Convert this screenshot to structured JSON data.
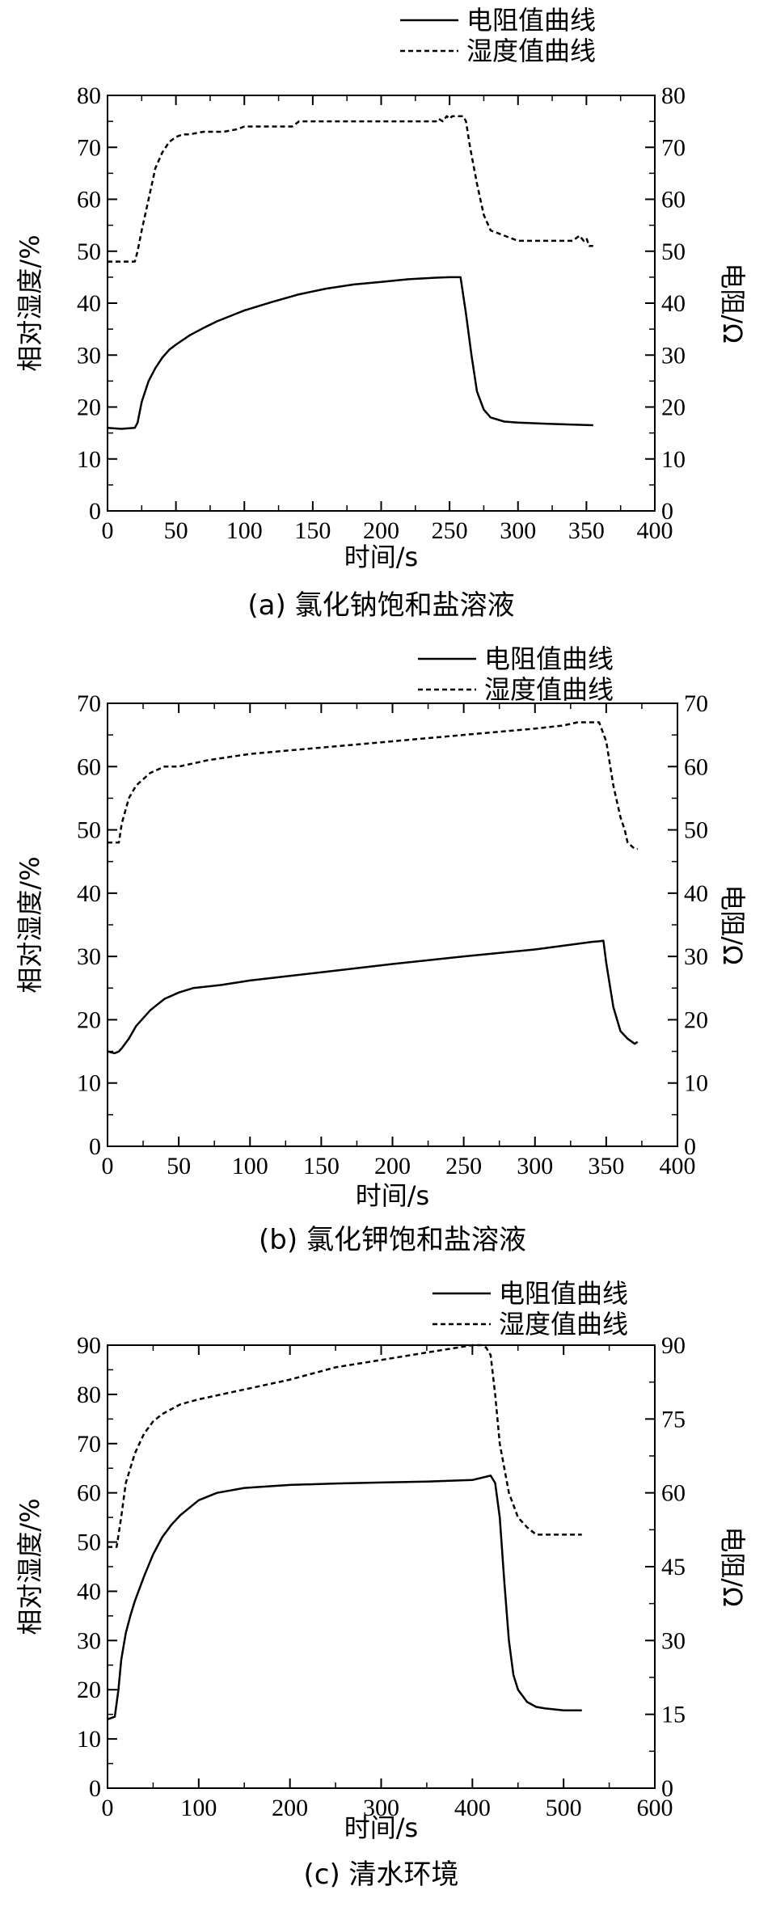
{
  "chart_data": [
    {
      "type": "line",
      "caption": "(a) 氯化钠饱和盐溶液",
      "xlabel": "时间/s",
      "ylabel": "相对湿度/%",
      "y2label": "电阻/Ω",
      "xlim": [
        0,
        400
      ],
      "xticks": [
        0,
        50,
        100,
        150,
        200,
        250,
        300,
        350,
        400
      ],
      "ylim": [
        0,
        80
      ],
      "yticks": [
        0,
        10,
        20,
        30,
        40,
        50,
        60,
        70,
        80
      ],
      "y2lim": [
        0,
        80
      ],
      "y2ticks": [
        0,
        10,
        20,
        30,
        40,
        50,
        60,
        70,
        80
      ],
      "legend": "top-right",
      "grid": false,
      "series": [
        {
          "name": "电阻值曲线",
          "style": "solid",
          "axis": "right",
          "x": [
            0,
            10,
            20,
            22,
            25,
            30,
            35,
            40,
            45,
            50,
            60,
            70,
            80,
            100,
            120,
            140,
            160,
            180,
            200,
            220,
            240,
            250,
            255,
            258,
            262,
            266,
            270,
            275,
            280,
            290,
            300,
            320,
            340,
            355
          ],
          "y": [
            16,
            15.8,
            16,
            17,
            21,
            25,
            27.5,
            29.5,
            31,
            32,
            33.8,
            35.2,
            36.5,
            38.6,
            40.2,
            41.7,
            42.8,
            43.6,
            44.1,
            44.6,
            44.9,
            45,
            45,
            45,
            38,
            30,
            23,
            19.5,
            18,
            17.2,
            17,
            16.8,
            16.6,
            16.5
          ]
        },
        {
          "name": "湿度值曲线",
          "style": "dashed",
          "axis": "left",
          "x": [
            0,
            20,
            22,
            25,
            30,
            35,
            40,
            45,
            50,
            55,
            60,
            70,
            85,
            95,
            100,
            120,
            135,
            140,
            160,
            200,
            240,
            242,
            245,
            248,
            250,
            252,
            255,
            260,
            262,
            265,
            270,
            275,
            280,
            290,
            300,
            320,
            340,
            345,
            348,
            350,
            352,
            355
          ],
          "y": [
            48,
            48,
            50,
            54,
            60,
            66,
            69,
            71,
            72,
            72.5,
            72.5,
            73,
            73,
            73.5,
            74,
            74,
            74,
            75,
            75,
            75,
            75,
            75.5,
            75,
            76,
            75.5,
            76,
            76,
            76,
            75,
            70,
            63,
            57,
            54,
            53,
            52,
            52,
            52,
            53,
            52,
            52.5,
            51,
            51
          ]
        }
      ]
    },
    {
      "type": "line",
      "caption": "(b) 氯化钾饱和盐溶液",
      "xlabel": "时间/s",
      "ylabel": "相对湿度/%",
      "y2label": "电阻/Ω",
      "xlim": [
        0,
        400
      ],
      "xticks": [
        0,
        50,
        100,
        150,
        200,
        250,
        300,
        350,
        400
      ],
      "ylim": [
        0,
        70
      ],
      "yticks": [
        0,
        10,
        20,
        30,
        40,
        50,
        60,
        70
      ],
      "y2lim": [
        0,
        70
      ],
      "y2ticks": [
        0,
        10,
        20,
        30,
        40,
        50,
        60,
        70
      ],
      "legend": "top-right",
      "grid": false,
      "series": [
        {
          "name": "电阻值曲线",
          "style": "solid",
          "axis": "right",
          "x": [
            0,
            5,
            8,
            10,
            15,
            20,
            30,
            40,
            50,
            60,
            80,
            100,
            150,
            200,
            250,
            300,
            340,
            345,
            348,
            350,
            355,
            360,
            365,
            370,
            372
          ],
          "y": [
            15,
            14.7,
            15,
            15.5,
            17,
            19,
            21.5,
            23.3,
            24.3,
            25,
            25.5,
            26.2,
            27.5,
            28.8,
            30,
            31.1,
            32.3,
            32.4,
            32.5,
            29,
            22,
            18.2,
            17,
            16.2,
            16.5
          ]
        },
        {
          "name": "湿度值曲线",
          "style": "dashed",
          "axis": "left",
          "x": [
            0,
            8,
            10,
            15,
            20,
            25,
            30,
            40,
            50,
            70,
            100,
            150,
            200,
            250,
            300,
            320,
            330,
            340,
            345,
            350,
            355,
            360,
            363,
            365,
            370,
            372
          ],
          "y": [
            48,
            48,
            51,
            55,
            57,
            58,
            59,
            60,
            60,
            61,
            62,
            63,
            64,
            65,
            66,
            66.5,
            67,
            67,
            67,
            64,
            57,
            52,
            50,
            48,
            47,
            47
          ]
        }
      ]
    },
    {
      "type": "line",
      "caption": "(c) 清水环境",
      "xlabel": "时间/s",
      "ylabel": "相对湿度/%",
      "y2label": "电阻/Ω",
      "xlim": [
        0,
        600
      ],
      "xticks": [
        0,
        100,
        200,
        300,
        400,
        500,
        600
      ],
      "ylim": [
        0,
        90
      ],
      "yticks": [
        0,
        10,
        20,
        30,
        40,
        50,
        60,
        70,
        80,
        90
      ],
      "y2lim": [
        0,
        90
      ],
      "y2ticks": [
        0,
        15,
        30,
        45,
        60,
        75,
        90
      ],
      "legend": "top-right",
      "grid": false,
      "series": [
        {
          "name": "电阻值曲线",
          "style": "solid",
          "axis": "right",
          "x": [
            0,
            8,
            12,
            15,
            20,
            25,
            30,
            40,
            50,
            60,
            70,
            80,
            100,
            120,
            150,
            200,
            250,
            300,
            350,
            400,
            420,
            425,
            430,
            435,
            440,
            445,
            450,
            460,
            470,
            480,
            500,
            520
          ],
          "y": [
            14,
            14.5,
            20,
            26,
            31.5,
            35,
            38,
            43,
            47.5,
            51,
            53.5,
            55.5,
            58.5,
            60,
            61,
            61.6,
            61.9,
            62.1,
            62.3,
            62.6,
            63.5,
            62,
            55,
            42,
            30,
            23,
            20,
            17.5,
            16.5,
            16.2,
            15.8,
            15.8
          ]
        },
        {
          "name": "湿度值曲线",
          "style": "dashed",
          "axis": "left",
          "x": [
            0,
            10,
            15,
            20,
            30,
            40,
            50,
            60,
            80,
            100,
            150,
            200,
            250,
            300,
            350,
            400,
            410,
            415,
            420,
            425,
            430,
            440,
            450,
            460,
            470,
            480,
            500,
            520
          ],
          "y": [
            49,
            49,
            55,
            62,
            68,
            72,
            74.5,
            76,
            78,
            79,
            81,
            83,
            85.5,
            87,
            88.5,
            90,
            90,
            89.5,
            88,
            80,
            70,
            60,
            55,
            53,
            51.5,
            51.5,
            51.5,
            51.5
          ]
        }
      ]
    }
  ]
}
